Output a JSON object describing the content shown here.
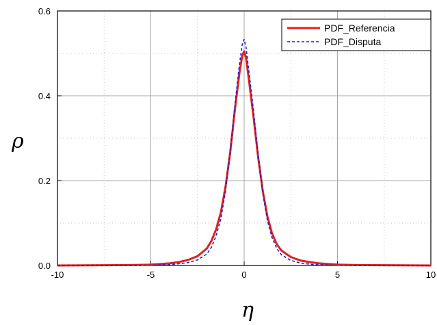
{
  "chart_data": {
    "type": "line",
    "title": "",
    "xlabel": "η",
    "ylabel": "ρ",
    "xlim": [
      -10,
      10
    ],
    "ylim": [
      0,
      0.6
    ],
    "x_ticks": [
      -10,
      -5,
      0,
      5,
      10
    ],
    "x_tick_labels": [
      "-10",
      "-5",
      "0",
      "5",
      "10"
    ],
    "y_ticks": [
      0.0,
      0.2,
      0.4,
      0.6
    ],
    "y_tick_labels": [
      "0.0",
      "0.2",
      "0.4",
      "0.6"
    ],
    "grid": true,
    "legend_position": "top-right",
    "series": [
      {
        "name": "PDF_Referencia",
        "color": "#e02020",
        "style": "solid",
        "x": [
          -10,
          -6,
          -5,
          -4,
          -3.5,
          -3,
          -2.5,
          -2,
          -1.75,
          -1.5,
          -1.25,
          -1,
          -0.75,
          -0.5,
          -0.25,
          -0.1,
          0,
          0.1,
          0.25,
          0.5,
          0.75,
          1,
          1.25,
          1.5,
          1.75,
          2,
          2.5,
          3,
          3.5,
          4,
          5,
          6,
          10
        ],
        "y": [
          0.0,
          0.001,
          0.002,
          0.005,
          0.008,
          0.013,
          0.022,
          0.04,
          0.058,
          0.085,
          0.125,
          0.185,
          0.265,
          0.365,
          0.455,
          0.495,
          0.505,
          0.49,
          0.44,
          0.35,
          0.255,
          0.175,
          0.115,
          0.075,
          0.05,
          0.035,
          0.02,
          0.012,
          0.008,
          0.005,
          0.002,
          0.001,
          0.0
        ]
      },
      {
        "name": "PDF_Disputa",
        "color": "#1f1fd6",
        "style": "dashed",
        "x": [
          -10,
          -6,
          -5,
          -4,
          -3.5,
          -3,
          -2.5,
          -2,
          -1.75,
          -1.5,
          -1.25,
          -1,
          -0.75,
          -0.5,
          -0.25,
          -0.1,
          0,
          0.1,
          0.25,
          0.5,
          0.75,
          1,
          1.25,
          1.5,
          1.75,
          2,
          2.5,
          3,
          3.5,
          4,
          5,
          6,
          10
        ],
        "y": [
          0.0,
          0.0,
          0.0005,
          0.002,
          0.004,
          0.007,
          0.013,
          0.027,
          0.043,
          0.07,
          0.11,
          0.175,
          0.265,
          0.375,
          0.475,
          0.522,
          0.533,
          0.515,
          0.46,
          0.365,
          0.26,
          0.17,
          0.105,
          0.065,
          0.04,
          0.025,
          0.012,
          0.006,
          0.003,
          0.0015,
          0.0005,
          0.0,
          0.0
        ]
      }
    ]
  }
}
